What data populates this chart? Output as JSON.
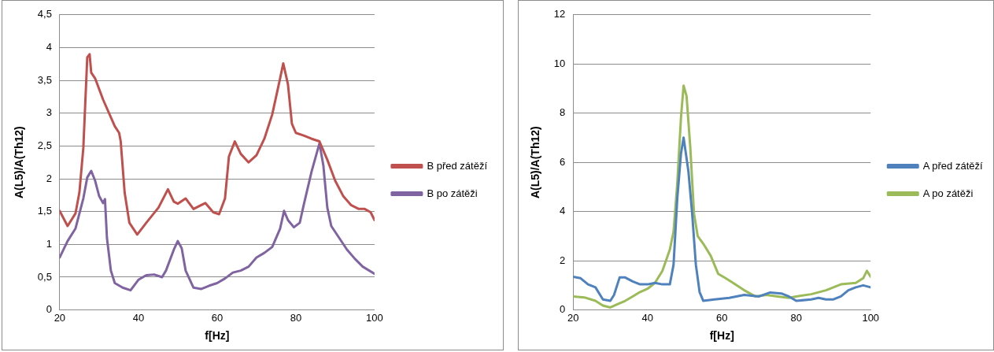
{
  "chart_data": [
    {
      "type": "line",
      "xlabel": "f[Hz]",
      "ylabel": "A(L5)/A(Th12)",
      "xlim": [
        20,
        100
      ],
      "xticks": [
        20,
        40,
        60,
        80,
        100
      ],
      "ylim": [
        0,
        4.5
      ],
      "yticks": [
        0,
        {
          "value": 0.5,
          "label": "0,5"
        },
        1,
        {
          "value": 1.5,
          "label": "1,5"
        },
        2,
        {
          "value": 2.5,
          "label": "2,5"
        },
        3,
        {
          "value": 3.5,
          "label": "3,5"
        },
        4,
        {
          "value": 4.5,
          "label": "4,5"
        }
      ],
      "grid": "y",
      "legend": "right",
      "marker": "none",
      "line_style": "solid",
      "series": [
        {
          "name": "B před zátěží",
          "color": "#c0504d",
          "x": [
            20,
            22,
            24,
            25,
            26,
            27,
            27.6,
            28,
            29,
            31,
            34,
            35.1,
            35.5,
            36.5,
            37.7,
            39.7,
            42,
            45.1,
            47.5,
            49,
            50,
            52,
            54,
            57,
            59,
            60.5,
            62,
            63,
            64.5,
            66,
            68,
            70,
            72,
            74,
            76,
            76.8,
            78,
            79,
            80,
            82,
            84,
            86,
            88,
            90,
            92,
            94,
            96,
            97.5,
            99,
            100
          ],
          "values": [
            1.51,
            1.28,
            1.47,
            1.79,
            2.47,
            3.85,
            3.9,
            3.62,
            3.53,
            3.21,
            2.8,
            2.7,
            2.57,
            1.79,
            1.33,
            1.15,
            1.33,
            1.56,
            1.84,
            1.65,
            1.62,
            1.7,
            1.54,
            1.63,
            1.49,
            1.46,
            1.7,
            2.34,
            2.57,
            2.38,
            2.25,
            2.36,
            2.61,
            2.98,
            3.53,
            3.76,
            3.44,
            2.84,
            2.7,
            2.66,
            2.61,
            2.57,
            2.29,
            1.97,
            1.74,
            1.6,
            1.54,
            1.54,
            1.49,
            1.37
          ]
        },
        {
          "name": "B po zátěži",
          "color": "#8064a2",
          "x": [
            20,
            22,
            24,
            26,
            27,
            28,
            29,
            30,
            31,
            31.5,
            32,
            33,
            34,
            36,
            38,
            40,
            42,
            44,
            46,
            47,
            49,
            50,
            51,
            52,
            54,
            56,
            58,
            60,
            62,
            64,
            66,
            68,
            70,
            72,
            74,
            76,
            77,
            78,
            79.5,
            81,
            82,
            84,
            86,
            87,
            88,
            89,
            91,
            93,
            95,
            97,
            100
          ],
          "values": [
            0.8,
            1.05,
            1.24,
            1.7,
            2.02,
            2.12,
            1.97,
            1.74,
            1.63,
            1.69,
            1.1,
            0.6,
            0.41,
            0.34,
            0.3,
            0.46,
            0.53,
            0.54,
            0.5,
            0.6,
            0.92,
            1.05,
            0.94,
            0.6,
            0.34,
            0.32,
            0.37,
            0.41,
            0.48,
            0.57,
            0.6,
            0.66,
            0.8,
            0.87,
            0.96,
            1.24,
            1.51,
            1.37,
            1.26,
            1.33,
            1.6,
            2.11,
            2.54,
            2.2,
            1.56,
            1.28,
            1.1,
            0.92,
            0.78,
            0.66,
            0.55
          ]
        }
      ]
    },
    {
      "type": "line",
      "xlabel": "f[Hz]",
      "ylabel": "A(L5)/A(Th12)",
      "xlim": [
        20,
        100
      ],
      "xticks": [
        20,
        40,
        60,
        80,
        100
      ],
      "ylim": [
        0,
        12
      ],
      "yticks": [
        0,
        2,
        4,
        6,
        8,
        10,
        12
      ],
      "grid": "y",
      "legend": "right",
      "marker": "none",
      "line_style": "solid",
      "series": [
        {
          "name": "A před zátěží",
          "color": "#4f81bd",
          "x": [
            20,
            22,
            24,
            26,
            28,
            30,
            31,
            32.5,
            34,
            36,
            38,
            40,
            42,
            44,
            46,
            47,
            48,
            49,
            49.7,
            51,
            52,
            53,
            54,
            55,
            58,
            62,
            66,
            70,
            73,
            76,
            78,
            80,
            84,
            86,
            88,
            90,
            92,
            94,
            96,
            98,
            100
          ],
          "values": [
            1.35,
            1.29,
            1.04,
            0.92,
            0.43,
            0.37,
            0.61,
            1.32,
            1.32,
            1.16,
            1.04,
            1.04,
            1.1,
            1.04,
            1.04,
            1.84,
            4.53,
            6.36,
            7.01,
            5.63,
            3.92,
            1.84,
            0.73,
            0.37,
            0.43,
            0.49,
            0.61,
            0.55,
            0.71,
            0.67,
            0.55,
            0.37,
            0.43,
            0.49,
            0.43,
            0.43,
            0.55,
            0.8,
            0.92,
            1.0,
            0.92
          ]
        },
        {
          "name": "A po zátěži",
          "color": "#9bbb59",
          "x": [
            20,
            23,
            26,
            28,
            30,
            32,
            34,
            36,
            38,
            40,
            42,
            44,
            46,
            47,
            48,
            49,
            49.7,
            50.5,
            51.5,
            52.5,
            53.5,
            55,
            57,
            59,
            61,
            63,
            66,
            69,
            72,
            75,
            78,
            80,
            84,
            88,
            92,
            96,
            98,
            99,
            100
          ],
          "values": [
            0.55,
            0.51,
            0.37,
            0.18,
            0.1,
            0.24,
            0.37,
            0.55,
            0.73,
            0.86,
            1.1,
            1.59,
            2.45,
            3.18,
            5.14,
            7.83,
            9.12,
            8.69,
            6.61,
            3.92,
            3.0,
            2.69,
            2.2,
            1.47,
            1.29,
            1.1,
            0.8,
            0.55,
            0.61,
            0.55,
            0.49,
            0.55,
            0.64,
            0.8,
            1.04,
            1.1,
            1.29,
            1.59,
            1.35
          ]
        }
      ]
    }
  ]
}
